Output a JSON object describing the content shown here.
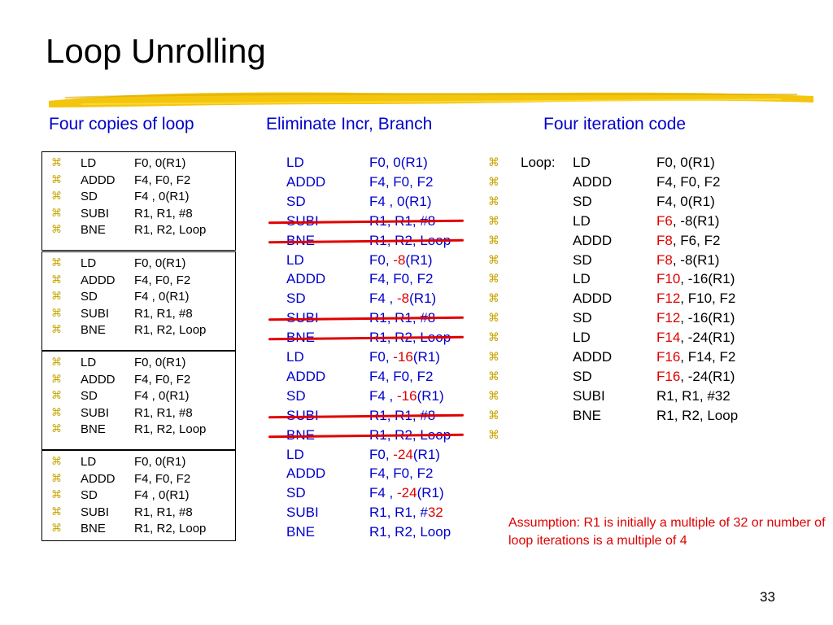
{
  "title": "Loop Unrolling",
  "headings": {
    "left": "Four copies of loop",
    "middle": "Eliminate Incr, Branch",
    "right": "Four iteration code"
  },
  "bullet_glyph": "⌘",
  "left_boxes": [
    [
      {
        "op": "LD",
        "args": "F0, 0(R1)"
      },
      {
        "op": "ADDD",
        "args": "F4, F0, F2"
      },
      {
        "op": "SD",
        "args": "F4 , 0(R1)"
      },
      {
        "op": "SUBI",
        "args": "R1, R1, #8"
      },
      {
        "op": "BNE",
        "args": "R1, R2, Loop"
      }
    ],
    [
      {
        "op": "LD",
        "args": "F0, 0(R1)"
      },
      {
        "op": "ADDD",
        "args": "F4, F0, F2"
      },
      {
        "op": "SD",
        "args": "F4 , 0(R1)"
      },
      {
        "op": "SUBI",
        "args": "R1, R1, #8"
      },
      {
        "op": "BNE",
        "args": "R1, R2, Loop"
      }
    ],
    [
      {
        "op": "LD",
        "args": "F0, 0(R1)"
      },
      {
        "op": "ADDD",
        "args": "F4, F0, F2"
      },
      {
        "op": "SD",
        "args": "F4 , 0(R1)"
      },
      {
        "op": "SUBI",
        "args": "R1, R1, #8"
      },
      {
        "op": "BNE",
        "args": "R1, R2, Loop"
      }
    ],
    [
      {
        "op": "LD",
        "args": "F0, 0(R1)"
      },
      {
        "op": "ADDD",
        "args": "F4, F0, F2"
      },
      {
        "op": "SD",
        "args": "F4 , 0(R1)"
      },
      {
        "op": "SUBI",
        "args": "R1, R1, #8"
      },
      {
        "op": "BNE",
        "args": "R1, R2, Loop"
      }
    ]
  ],
  "middle": [
    {
      "op": "LD",
      "args": [
        {
          "t": "F0, 0(R1)"
        }
      ],
      "struck": false
    },
    {
      "op": "ADDD",
      "args": [
        {
          "t": "F4, F0, F2"
        }
      ],
      "struck": false
    },
    {
      "op": "SD",
      "args": [
        {
          "t": "F4 , 0(R1)"
        }
      ],
      "struck": false
    },
    {
      "op": "SUBI",
      "args": [
        {
          "t": "R1, R1, #8"
        }
      ],
      "struck": true
    },
    {
      "op": "BNE",
      "args": [
        {
          "t": "R1, R2, Loop"
        }
      ],
      "struck": true
    },
    {
      "op": "LD",
      "args": [
        {
          "t": "F0, "
        },
        {
          "t": "-8",
          "red": true
        },
        {
          "t": "(R1)"
        }
      ],
      "struck": false
    },
    {
      "op": "ADDD",
      "args": [
        {
          "t": "F4, F0, F2"
        }
      ],
      "struck": false
    },
    {
      "op": "SD",
      "args": [
        {
          "t": "F4 , "
        },
        {
          "t": "-8",
          "red": true
        },
        {
          "t": "(R1)"
        }
      ],
      "struck": false
    },
    {
      "op": "SUBI",
      "args": [
        {
          "t": "R1, R1, #8"
        }
      ],
      "struck": true
    },
    {
      "op": "BNE",
      "args": [
        {
          "t": "R1, R2, Loop"
        }
      ],
      "struck": true
    },
    {
      "op": "LD",
      "args": [
        {
          "t": "F0, "
        },
        {
          "t": "-16",
          "red": true
        },
        {
          "t": "(R1)"
        }
      ],
      "struck": false
    },
    {
      "op": "ADDD",
      "args": [
        {
          "t": "F4, F0, F2"
        }
      ],
      "struck": false
    },
    {
      "op": "SD",
      "args": [
        {
          "t": "F4 , "
        },
        {
          "t": "-16",
          "red": true
        },
        {
          "t": "(R1)"
        }
      ],
      "struck": false
    },
    {
      "op": "SUBI",
      "args": [
        {
          "t": "R1, R1, #8"
        }
      ],
      "struck": true
    },
    {
      "op": "BNE",
      "args": [
        {
          "t": "R1, R2, Loop"
        }
      ],
      "struck": true
    },
    {
      "op": "LD",
      "args": [
        {
          "t": "F0, "
        },
        {
          "t": "-24",
          "red": true
        },
        {
          "t": "(R1)"
        }
      ],
      "struck": false
    },
    {
      "op": "ADDD",
      "args": [
        {
          "t": "F4, F0, F2"
        }
      ],
      "struck": false
    },
    {
      "op": "SD",
      "args": [
        {
          "t": "F4 , "
        },
        {
          "t": "-24",
          "red": true
        },
        {
          "t": "(R1)"
        }
      ],
      "struck": false
    },
    {
      "op": "SUBI",
      "args": [
        {
          "t": "R1, R1, #"
        },
        {
          "t": "32",
          "red": true
        }
      ],
      "struck": false
    },
    {
      "op": "BNE",
      "args": [
        {
          "t": "R1, R2, Loop"
        }
      ],
      "struck": false
    }
  ],
  "right": [
    {
      "label": "Loop:",
      "op": "LD",
      "args": [
        {
          "t": "F0, 0(R1)"
        }
      ]
    },
    {
      "label": "",
      "op": "ADDD",
      "args": [
        {
          "t": "F4, F0, F2"
        }
      ]
    },
    {
      "label": "",
      "op": "SD",
      "args": [
        {
          "t": "F4, 0(R1)"
        }
      ]
    },
    {
      "label": "",
      "op": "LD",
      "args": [
        {
          "t": "F6",
          "red": true
        },
        {
          "t": ", -8(R1)"
        }
      ]
    },
    {
      "label": "",
      "op": "ADDD",
      "args": [
        {
          "t": "F8",
          "red": true
        },
        {
          "t": ", F6, F2"
        }
      ]
    },
    {
      "label": "",
      "op": "SD",
      "args": [
        {
          "t": "F8",
          "red": true
        },
        {
          "t": ", -8(R1)"
        }
      ]
    },
    {
      "label": "",
      "op": "LD",
      "args": [
        {
          "t": "F10",
          "red": true
        },
        {
          "t": ", -16(R1)"
        }
      ]
    },
    {
      "label": "",
      "op": "ADDD",
      "args": [
        {
          "t": "F12",
          "red": true
        },
        {
          "t": ", F10, F2"
        }
      ]
    },
    {
      "label": "",
      "op": "SD",
      "args": [
        {
          "t": "F12",
          "red": true
        },
        {
          "t": ", -16(R1)"
        }
      ]
    },
    {
      "label": "",
      "op": "LD",
      "args": [
        {
          "t": "F14",
          "red": true
        },
        {
          "t": ", -24(R1)"
        }
      ]
    },
    {
      "label": "",
      "op": "ADDD",
      "args": [
        {
          "t": "F16",
          "red": true
        },
        {
          "t": ", F14, F2"
        }
      ]
    },
    {
      "label": "",
      "op": "SD",
      "args": [
        {
          "t": "F16",
          "red": true
        },
        {
          "t": ", -24(R1)"
        }
      ]
    },
    {
      "label": "",
      "op": "SUBI",
      "args": [
        {
          "t": "R1, R1, #32"
        }
      ]
    },
    {
      "label": "",
      "op": "BNE",
      "args": [
        {
          "t": "R1, R2, Loop"
        }
      ]
    },
    {
      "label": "",
      "op": "",
      "args": []
    }
  ],
  "assumption": "Assumption: R1 is initially a multiple of 32 or number of loop iterations is a multiple of 4",
  "page_number": "33",
  "colors": {
    "blue": "#0000cc",
    "red": "#e00000",
    "bullet": "#c8a400",
    "brush": "#f2c200"
  }
}
